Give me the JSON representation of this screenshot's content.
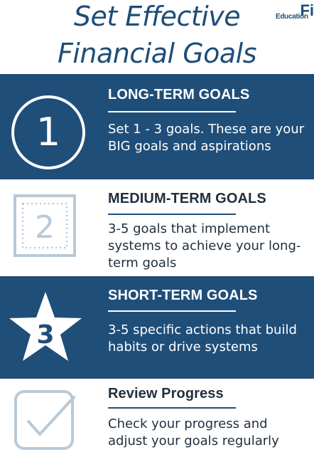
{
  "header": {
    "title_line1": "Set Effective",
    "title_line2": "Financial Goals",
    "logo_small": "Education",
    "logo_big": "Fi"
  },
  "sections": [
    {
      "number": "1",
      "icon": "circle-number-icon",
      "title": "LONG-TERM GOALS",
      "body": "Set 1 - 3 goals.  These are your BIG goals and aspirations"
    },
    {
      "number": "2",
      "icon": "dotted-square-number-icon",
      "title": "MEDIUM-TERM GOALS",
      "body": "3-5 goals that implement systems to achieve your long-term goals"
    },
    {
      "number": "3",
      "icon": "star-number-icon",
      "title": "SHORT-TERM GOALS",
      "body": "3-5 specific actions that build habits or drive systems"
    },
    {
      "number": "",
      "icon": "checkbox-check-icon",
      "title": "Review Progress",
      "body": "Check your progress and adjust your goals regularly"
    }
  ],
  "colors": {
    "navy": "#1f4e79",
    "title_blue": "#1e4d78",
    "icon_light": "#b8c9d8",
    "text_dark": "#1f2f3d",
    "white": "#ffffff"
  }
}
